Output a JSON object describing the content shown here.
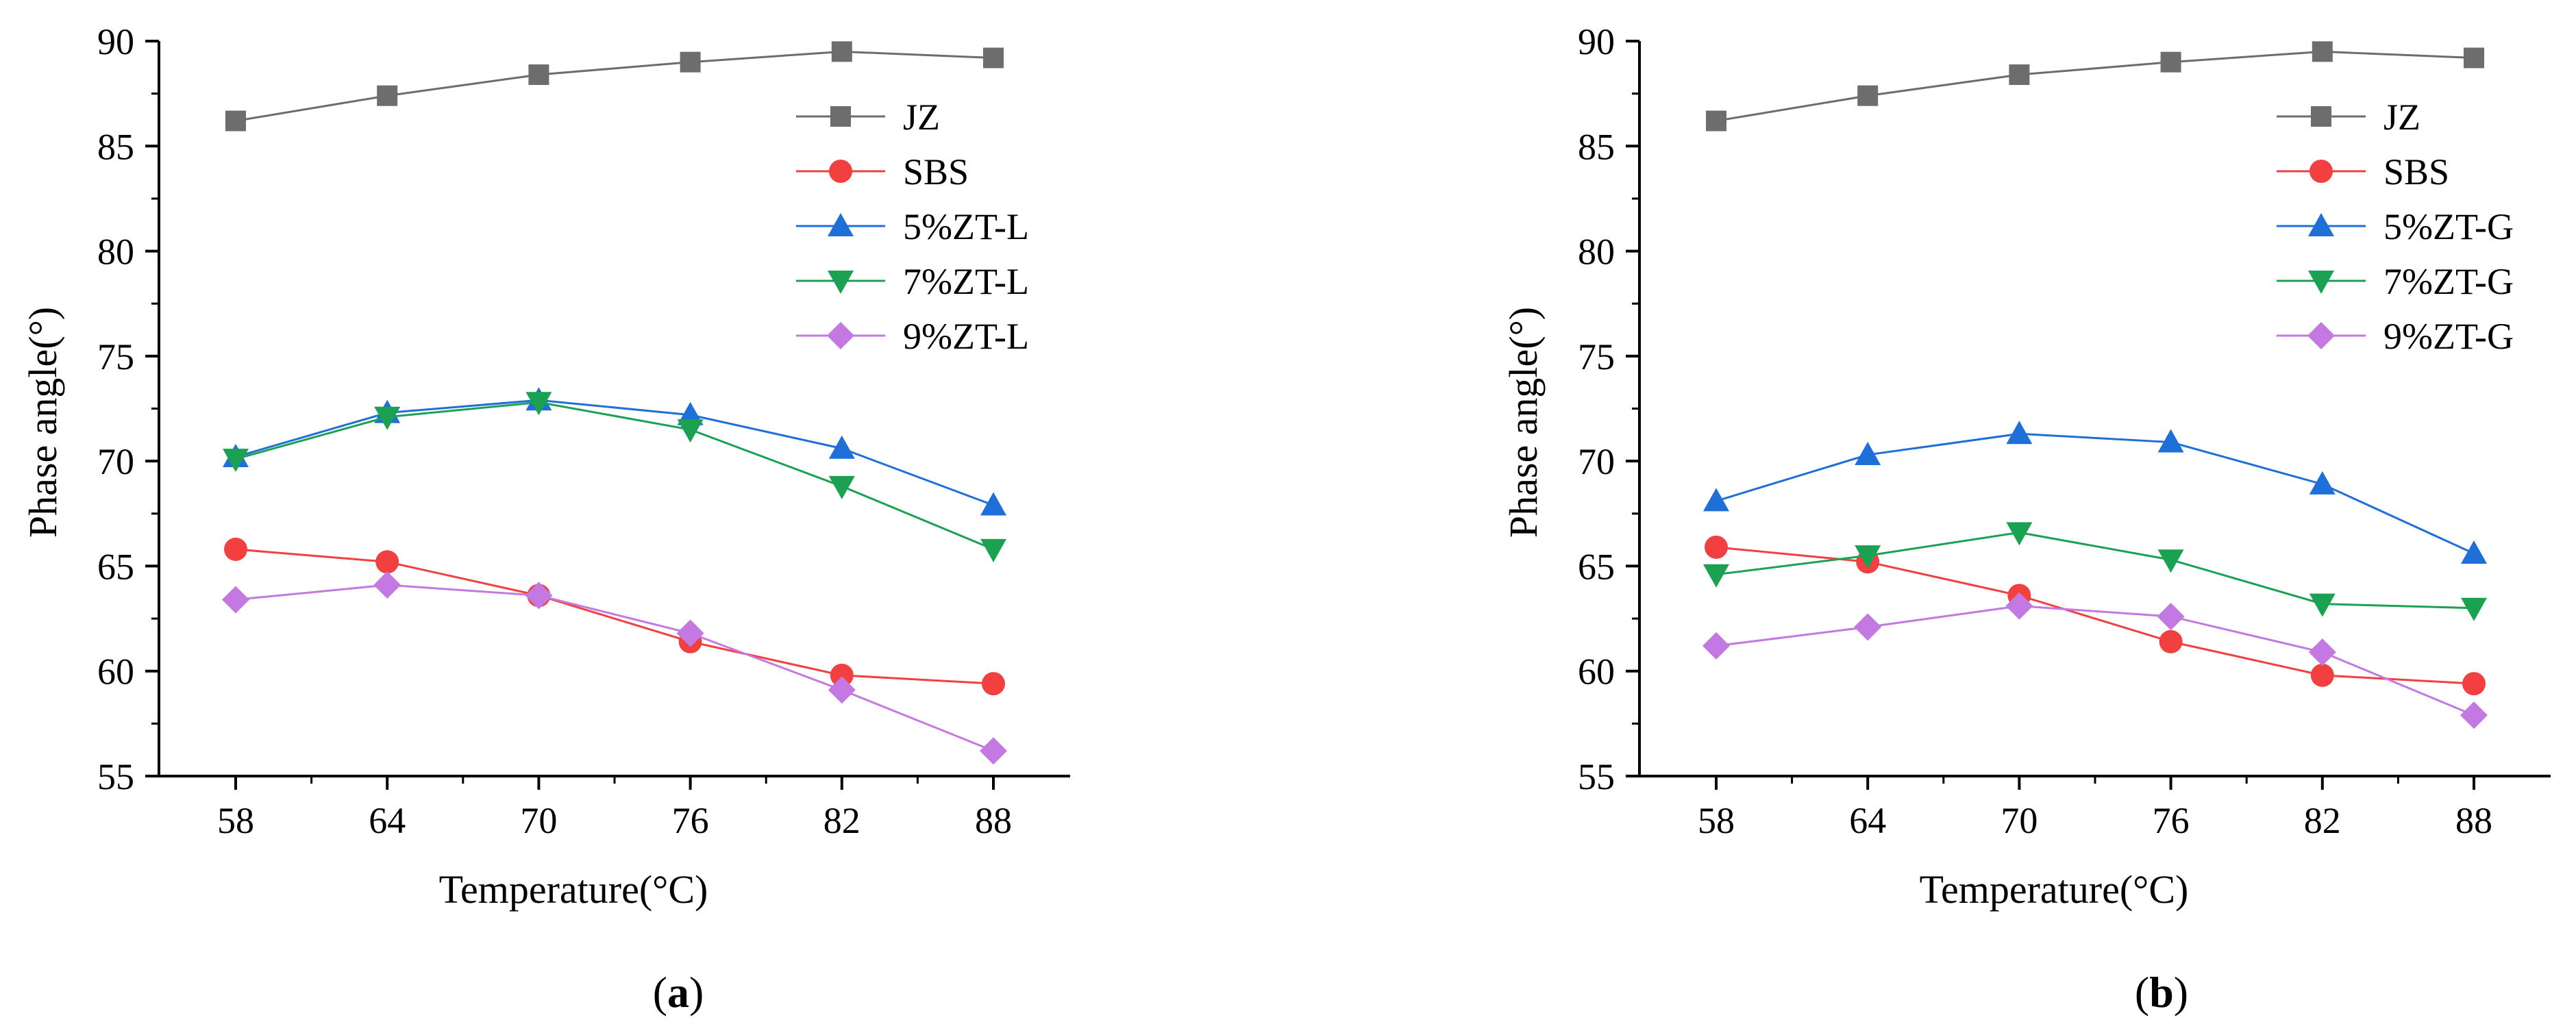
{
  "chart_data": [
    {
      "type": "line",
      "panel_label": "a",
      "title": "",
      "xlabel": "Temperature(°C)",
      "ylabel": "Phase angle(°)",
      "x": [
        58,
        64,
        70,
        76,
        82,
        88
      ],
      "xticks": [
        "58",
        "64",
        "70",
        "76",
        "82",
        "88"
      ],
      "ylim": [
        55,
        90
      ],
      "yticks": [
        55,
        60,
        65,
        70,
        75,
        80,
        85,
        90
      ],
      "grid": false,
      "legend_position": "top-right",
      "series": [
        {
          "name": "JZ",
          "marker": "square",
          "color": "#6d6d6d",
          "values": [
            86.2,
            87.4,
            88.4,
            89.0,
            89.5,
            89.2
          ]
        },
        {
          "name": "SBS",
          "marker": "circle",
          "color": "#f23f3f",
          "values": [
            65.8,
            65.2,
            63.6,
            61.4,
            59.8,
            59.4
          ]
        },
        {
          "name": "5%ZT-L",
          "marker": "triangle-up",
          "color": "#1f6fd8",
          "values": [
            70.2,
            72.3,
            72.9,
            72.2,
            70.6,
            67.9
          ]
        },
        {
          "name": "7%ZT-L",
          "marker": "triangle-down",
          "color": "#1aa152",
          "values": [
            70.1,
            72.1,
            72.8,
            71.5,
            68.8,
            65.8
          ]
        },
        {
          "name": "9%ZT-L",
          "marker": "diamond",
          "color": "#c479e2",
          "values": [
            63.4,
            64.1,
            63.6,
            61.8,
            59.1,
            56.2
          ]
        }
      ]
    },
    {
      "type": "line",
      "panel_label": "b",
      "title": "",
      "xlabel": "Temperature(°C)",
      "ylabel": "Phase angle(°)",
      "x": [
        58,
        64,
        70,
        76,
        82,
        88
      ],
      "xticks": [
        "58",
        "64",
        "70",
        "76",
        "82",
        "88"
      ],
      "ylim": [
        55,
        90
      ],
      "yticks": [
        55,
        60,
        65,
        70,
        75,
        80,
        85,
        90
      ],
      "grid": false,
      "legend_position": "top-right",
      "series": [
        {
          "name": "JZ",
          "marker": "square",
          "color": "#6d6d6d",
          "values": [
            86.2,
            87.4,
            88.4,
            89.0,
            89.5,
            89.2
          ]
        },
        {
          "name": "SBS",
          "marker": "circle",
          "color": "#f23f3f",
          "values": [
            65.9,
            65.2,
            63.6,
            61.4,
            59.8,
            59.4
          ]
        },
        {
          "name": "5%ZT-G",
          "marker": "triangle-up",
          "color": "#1f6fd8",
          "values": [
            68.1,
            70.3,
            71.3,
            70.9,
            68.9,
            65.6
          ]
        },
        {
          "name": "7%ZT-G",
          "marker": "triangle-down",
          "color": "#1aa152",
          "values": [
            64.6,
            65.5,
            66.6,
            65.3,
            63.2,
            63.0
          ]
        },
        {
          "name": "9%ZT-G",
          "marker": "diamond",
          "color": "#c479e2",
          "values": [
            61.2,
            62.1,
            63.1,
            62.6,
            60.9,
            57.9
          ]
        }
      ]
    }
  ]
}
